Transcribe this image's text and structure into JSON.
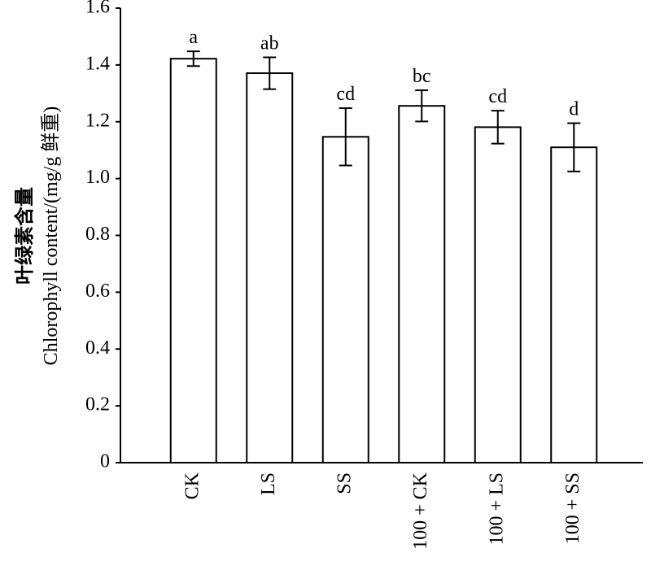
{
  "chart_data": {
    "type": "bar",
    "y_label": [
      "叶绿素含量",
      "Chlorophyll content/(mg/g  鲜重)"
    ],
    "categories": [
      "CK",
      "LS",
      "SS",
      "100 + CK",
      "100 + LS",
      "100 + SS"
    ],
    "values": [
      1.422,
      1.371,
      1.147,
      1.256,
      1.181,
      1.11
    ],
    "errors": [
      0.026,
      0.056,
      0.101,
      0.055,
      0.058,
      0.085
    ],
    "significance": [
      "a",
      "ab",
      "cd",
      "bc",
      "cd",
      "d"
    ],
    "color": "#ffffff",
    "ylim": [
      0,
      1.6
    ],
    "yticks": [
      0,
      0.2,
      0.4,
      0.6,
      0.8,
      {
        "value": 1,
        "label": "1.0"
      },
      1.2,
      1.4,
      1.6
    ]
  }
}
